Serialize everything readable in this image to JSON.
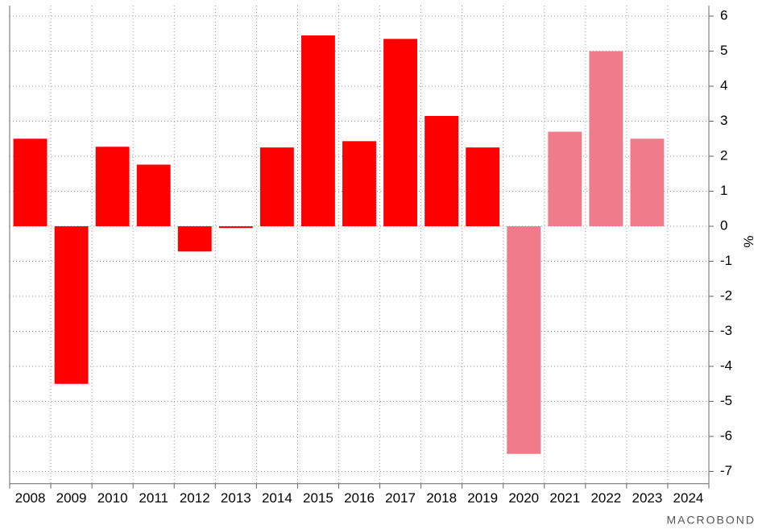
{
  "chart_data": {
    "type": "bar",
    "categories": [
      "2008",
      "2009",
      "2010",
      "2011",
      "2012",
      "2013",
      "2014",
      "2015",
      "2016",
      "2017",
      "2018",
      "2019",
      "2020",
      "2021",
      "2022",
      "2023",
      "2024"
    ],
    "values": [
      2.5,
      -4.5,
      2.27,
      1.76,
      -0.72,
      -0.05,
      2.25,
      5.45,
      2.43,
      5.35,
      3.15,
      2.25,
      -6.5,
      2.7,
      5.0,
      2.5,
      null
    ],
    "colors": [
      "#ff0000",
      "#ff0000",
      "#ff0000",
      "#ff0000",
      "#ff0000",
      "#ff0000",
      "#ff0000",
      "#ff0000",
      "#ff0000",
      "#ff0000",
      "#ff0000",
      "#ff0000",
      "#f07b8a",
      "#f07b8a",
      "#f07b8a",
      "#f07b8a",
      null
    ],
    "y_axis_label": "%",
    "ylim": [
      -7.35,
      6.3
    ],
    "yticks": [
      6,
      5,
      4,
      3,
      2,
      1,
      0,
      -1,
      -2,
      -3,
      -4,
      -5,
      -6,
      -7
    ],
    "grid": true,
    "watermark": "MACROBOND"
  }
}
